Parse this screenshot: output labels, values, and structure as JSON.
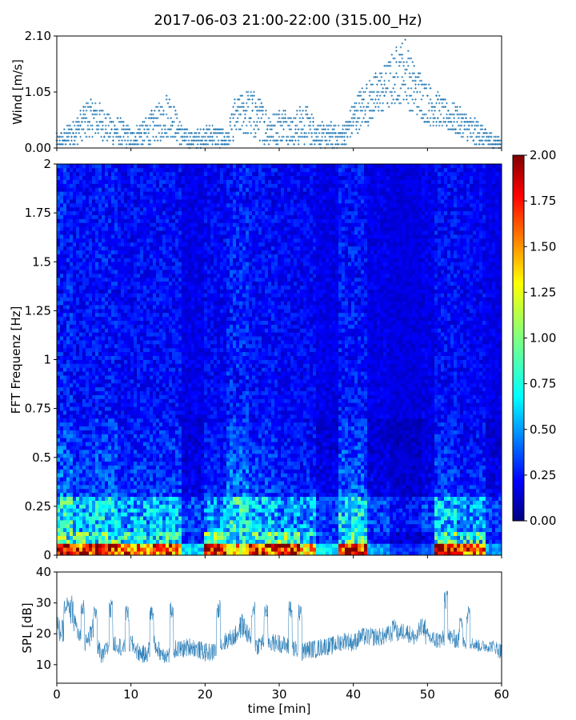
{
  "figure": {
    "title": "2017-06-03 21:00-22:00 (315.00_Hz)"
  },
  "colors": {
    "wind_points": "#1f77b4",
    "spl_line": "#1f77b4",
    "axes": "#000000",
    "colormap": "jet"
  },
  "chart_data": [
    {
      "type": "scatter",
      "ylabel": "Wind [m/s]",
      "xlabel": "",
      "xlim": [
        0,
        60
      ],
      "ylim": [
        0,
        2.1
      ],
      "yticks": [
        "0.00",
        "1.05",
        "2.10"
      ],
      "x_tick_labels_shown": false,
      "marker": "+",
      "envelope_x": [
        0,
        1,
        2,
        3,
        4,
        5,
        6,
        7,
        8,
        9,
        10,
        11,
        12,
        13,
        14,
        15,
        16,
        17,
        18,
        19,
        20,
        21,
        22,
        23,
        24,
        25,
        26,
        27,
        28,
        29,
        30,
        31,
        32,
        33,
        34,
        35,
        36,
        37,
        38,
        39,
        40,
        41,
        42,
        43,
        44,
        45,
        46,
        47,
        48,
        49,
        50,
        51,
        52,
        53,
        54,
        55,
        56,
        57,
        58,
        59,
        60
      ],
      "envelope_high": [
        0.25,
        0.35,
        0.5,
        0.65,
        0.9,
        0.95,
        0.8,
        0.65,
        0.6,
        0.5,
        0.35,
        0.45,
        0.55,
        0.75,
        0.85,
        1.1,
        0.75,
        0.4,
        0.3,
        0.35,
        0.4,
        0.45,
        0.4,
        0.3,
        0.9,
        1.05,
        1.15,
        1.0,
        0.85,
        0.65,
        0.75,
        0.8,
        0.6,
        0.85,
        0.75,
        0.55,
        0.45,
        0.5,
        0.4,
        0.5,
        0.9,
        1.15,
        1.25,
        1.4,
        1.55,
        1.7,
        1.95,
        2.1,
        1.65,
        1.45,
        1.25,
        1.1,
        0.95,
        0.85,
        0.8,
        0.7,
        0.55,
        0.5,
        0.35,
        0.25,
        0.2
      ],
      "envelope_low": [
        0.0,
        0.0,
        0.05,
        0.1,
        0.15,
        0.2,
        0.15,
        0.1,
        0.05,
        0.0,
        0.0,
        0.05,
        0.05,
        0.1,
        0.15,
        0.2,
        0.15,
        0.0,
        0.0,
        0.0,
        0.05,
        0.05,
        0.0,
        0.0,
        0.2,
        0.25,
        0.2,
        0.15,
        0.1,
        0.05,
        0.1,
        0.1,
        0.05,
        0.05,
        0.1,
        0.05,
        0.0,
        0.0,
        0.0,
        0.05,
        0.2,
        0.35,
        0.45,
        0.55,
        0.65,
        0.75,
        0.85,
        0.85,
        0.65,
        0.55,
        0.45,
        0.4,
        0.35,
        0.3,
        0.25,
        0.15,
        0.05,
        0.05,
        0.0,
        0.0,
        0.0
      ]
    },
    {
      "type": "heatmap",
      "ylabel": "FFT Frequenz [Hz]",
      "xlabel": "",
      "xlim": [
        0,
        60
      ],
      "ylim": [
        0,
        2
      ],
      "yticks": [
        "0",
        "0.25",
        "0.5",
        "0.75",
        "1",
        "1.25",
        "1.5",
        "1.75",
        "2"
      ],
      "x_tick_labels_shown": false,
      "colorbar": {
        "range": [
          0,
          2
        ],
        "ticks": [
          "0.00",
          "0.25",
          "0.50",
          "0.75",
          "1.00",
          "1.25",
          "1.50",
          "1.75",
          "2.00"
        ]
      },
      "time_bands": [
        {
          "x0": 0,
          "x1": 2,
          "low_intensity": 1.9,
          "mid_intensity": 0.45
        },
        {
          "x0": 2,
          "x1": 5,
          "low_intensity": 1.7,
          "mid_intensity": 0.35
        },
        {
          "x0": 5,
          "x1": 8,
          "low_intensity": 1.8,
          "mid_intensity": 0.4
        },
        {
          "x0": 8,
          "x1": 10,
          "low_intensity": 1.6,
          "mid_intensity": 0.3
        },
        {
          "x0": 10,
          "x1": 13,
          "low_intensity": 1.5,
          "mid_intensity": 0.35
        },
        {
          "x0": 13,
          "x1": 17,
          "low_intensity": 1.6,
          "mid_intensity": 0.35
        },
        {
          "x0": 17,
          "x1": 20,
          "low_intensity": 0.6,
          "mid_intensity": 0.2
        },
        {
          "x0": 20,
          "x1": 23,
          "low_intensity": 1.9,
          "mid_intensity": 0.3
        },
        {
          "x0": 23,
          "x1": 26,
          "low_intensity": 1.4,
          "mid_intensity": 0.45
        },
        {
          "x0": 26,
          "x1": 30,
          "low_intensity": 1.7,
          "mid_intensity": 0.35
        },
        {
          "x0": 30,
          "x1": 33,
          "low_intensity": 1.9,
          "mid_intensity": 0.3
        },
        {
          "x0": 33,
          "x1": 35,
          "low_intensity": 1.4,
          "mid_intensity": 0.3
        },
        {
          "x0": 35,
          "x1": 38,
          "low_intensity": 0.7,
          "mid_intensity": 0.2
        },
        {
          "x0": 38,
          "x1": 42,
          "low_intensity": 1.8,
          "mid_intensity": 0.4
        },
        {
          "x0": 42,
          "x1": 45,
          "low_intensity": 0.5,
          "mid_intensity": 0.2
        },
        {
          "x0": 45,
          "x1": 49,
          "low_intensity": 0.3,
          "mid_intensity": 0.15
        },
        {
          "x0": 49,
          "x1": 51,
          "low_intensity": 0.4,
          "mid_intensity": 0.2
        },
        {
          "x0": 51,
          "x1": 54,
          "low_intensity": 1.9,
          "mid_intensity": 0.35
        },
        {
          "x0": 54,
          "x1": 58,
          "low_intensity": 1.6,
          "mid_intensity": 0.3
        },
        {
          "x0": 58,
          "x1": 60,
          "low_intensity": 0.5,
          "mid_intensity": 0.2
        }
      ]
    },
    {
      "type": "line",
      "ylabel": "SPL [dB]",
      "xlabel": "time [min]",
      "xlim": [
        0,
        60
      ],
      "ylim": [
        4,
        40
      ],
      "yticks": [
        "10",
        "20",
        "30",
        "40"
      ],
      "xticks": [
        "0",
        "10",
        "20",
        "30",
        "40",
        "50",
        "60"
      ],
      "x": [
        0,
        1,
        2,
        3,
        4,
        5,
        6,
        7,
        8,
        9,
        10,
        11,
        12,
        13,
        14,
        15,
        16,
        17,
        18,
        19,
        20,
        21,
        22,
        23,
        24,
        25,
        26,
        27,
        28,
        29,
        30,
        31,
        32,
        33,
        34,
        35,
        36,
        37,
        38,
        39,
        40,
        41,
        42,
        43,
        44,
        45,
        46,
        47,
        48,
        49,
        50,
        51,
        52,
        53,
        54,
        55,
        56,
        57,
        58,
        59,
        60
      ],
      "y": [
        22,
        20,
        28,
        19,
        17,
        22,
        12,
        16,
        17,
        15,
        17,
        14,
        13,
        17,
        14,
        13,
        15,
        15,
        16,
        15,
        14,
        14,
        16,
        18,
        19,
        23,
        19,
        16,
        18,
        17,
        17,
        16,
        15,
        14,
        15,
        15,
        16,
        16,
        17,
        18,
        17,
        19,
        19,
        19,
        19,
        20,
        20,
        21,
        19,
        19,
        19,
        18,
        18,
        19,
        18,
        17,
        17,
        16,
        16,
        16,
        14
      ],
      "spread": [
        4,
        4,
        5,
        3,
        3,
        4,
        3,
        3,
        3,
        3,
        3,
        3,
        3,
        3,
        3,
        3,
        3,
        3,
        3,
        3,
        3,
        3,
        3,
        3,
        3,
        4,
        3,
        3,
        3,
        3,
        3,
        3,
        3,
        3,
        3,
        3,
        3,
        3,
        3,
        3,
        3,
        3,
        3,
        3,
        3,
        3,
        3,
        3,
        3,
        3,
        3,
        3,
        3,
        3,
        3,
        2,
        2,
        2,
        2,
        2,
        3
      ]
    }
  ]
}
